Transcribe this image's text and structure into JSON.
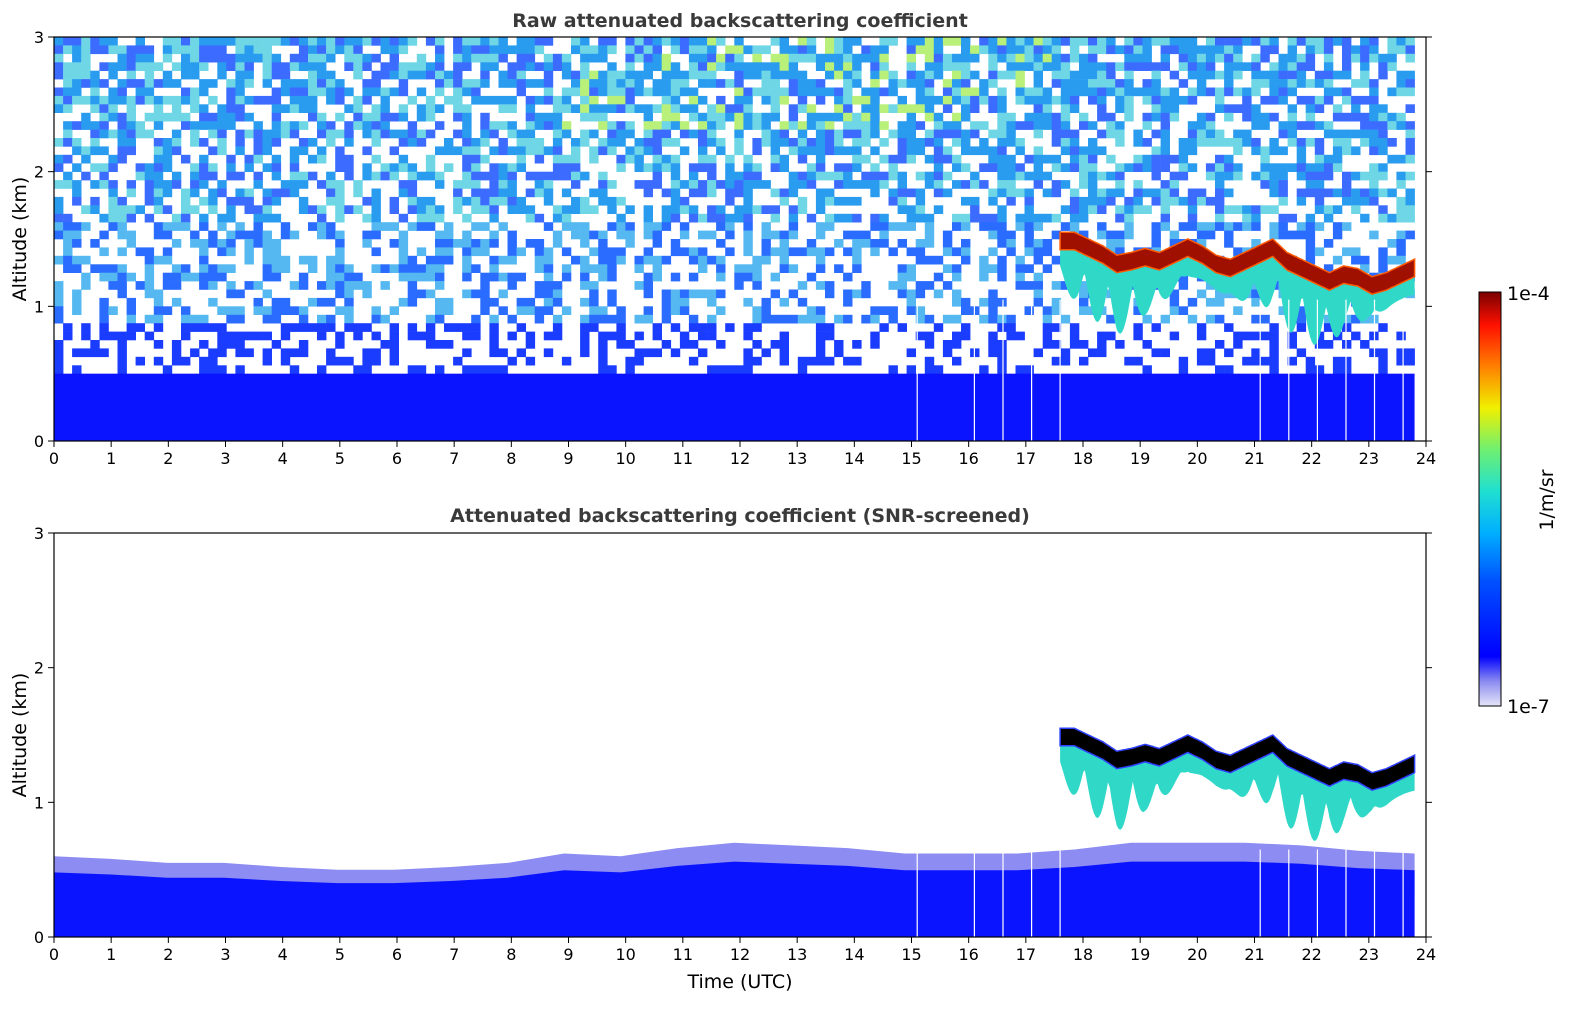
{
  "colormap": "jet (with light lavender low end)",
  "colorbar": {
    "max_label": "1e-4",
    "min_label": "1e-7",
    "unit_label": "1/m/sr",
    "scale": "log"
  },
  "chart_data": [
    {
      "type": "heatmap",
      "title": "Raw attenuated backscattering coefficient",
      "xlabel": "",
      "ylabel": "Altitude (km)",
      "xlim": [
        0,
        24
      ],
      "ylim": [
        0,
        3
      ],
      "x_ticks": [
        "0",
        "1",
        "2",
        "3",
        "4",
        "5",
        "6",
        "7",
        "8",
        "9",
        "10",
        "11",
        "12",
        "13",
        "14",
        "15",
        "16",
        "17",
        "18",
        "19",
        "20",
        "21",
        "22",
        "23",
        "24"
      ],
      "y_ticks": [
        "0",
        "1",
        "2",
        "3"
      ],
      "data_end_hour": 23.8,
      "boundary_layer_top_km": 0.5,
      "noise_background": "speckled blue/cyan noise increasing with altitude",
      "cloud_layer": {
        "start_hour": 17.6,
        "end_hour": 23.8,
        "base_km": [
          1.45,
          1.45,
          1.4,
          1.35,
          1.28,
          1.3,
          1.33,
          1.3,
          1.35,
          1.4,
          1.35,
          1.28,
          1.25,
          1.3,
          1.35,
          1.4,
          1.3,
          1.25,
          1.2,
          1.15,
          1.2,
          1.18,
          1.12,
          1.15,
          1.2,
          1.25
        ]
      },
      "missing_profiles_hour": [
        15.1,
        16.1,
        16.6,
        17.1,
        17.6,
        21.1,
        21.6,
        22.1,
        22.6,
        23.1,
        23.6
      ]
    },
    {
      "type": "heatmap",
      "title": "Attenuated backscattering coefficient (SNR-screened)",
      "xlabel": "Time (UTC)",
      "ylabel": "Altitude (km)",
      "xlim": [
        0,
        24
      ],
      "ylim": [
        0,
        3
      ],
      "x_ticks": [
        "0",
        "1",
        "2",
        "3",
        "4",
        "5",
        "6",
        "7",
        "8",
        "9",
        "10",
        "11",
        "12",
        "13",
        "14",
        "15",
        "16",
        "17",
        "18",
        "19",
        "20",
        "21",
        "22",
        "23",
        "24"
      ],
      "y_ticks": [
        "0",
        "1",
        "2",
        "3"
      ],
      "data_end_hour": 23.8,
      "boundary_layer_top_km": [
        0.6,
        0.58,
        0.55,
        0.55,
        0.52,
        0.5,
        0.5,
        0.52,
        0.55,
        0.62,
        0.6,
        0.66,
        0.7,
        0.68,
        0.66,
        0.62,
        0.62,
        0.62,
        0.65,
        0.7,
        0.7,
        0.7,
        0.68,
        0.64,
        0.62
      ],
      "cloud_layer": {
        "start_hour": 17.6,
        "end_hour": 23.8,
        "base_km": [
          1.45,
          1.45,
          1.4,
          1.35,
          1.28,
          1.3,
          1.33,
          1.3,
          1.35,
          1.4,
          1.35,
          1.28,
          1.25,
          1.3,
          1.35,
          1.4,
          1.3,
          1.25,
          1.2,
          1.15,
          1.2,
          1.18,
          1.12,
          1.15,
          1.2,
          1.25
        ]
      },
      "missing_profiles_hour": [
        15.1,
        16.1,
        16.6,
        17.1,
        17.6,
        21.1,
        21.6,
        22.1,
        22.6,
        23.1,
        23.6
      ]
    }
  ]
}
